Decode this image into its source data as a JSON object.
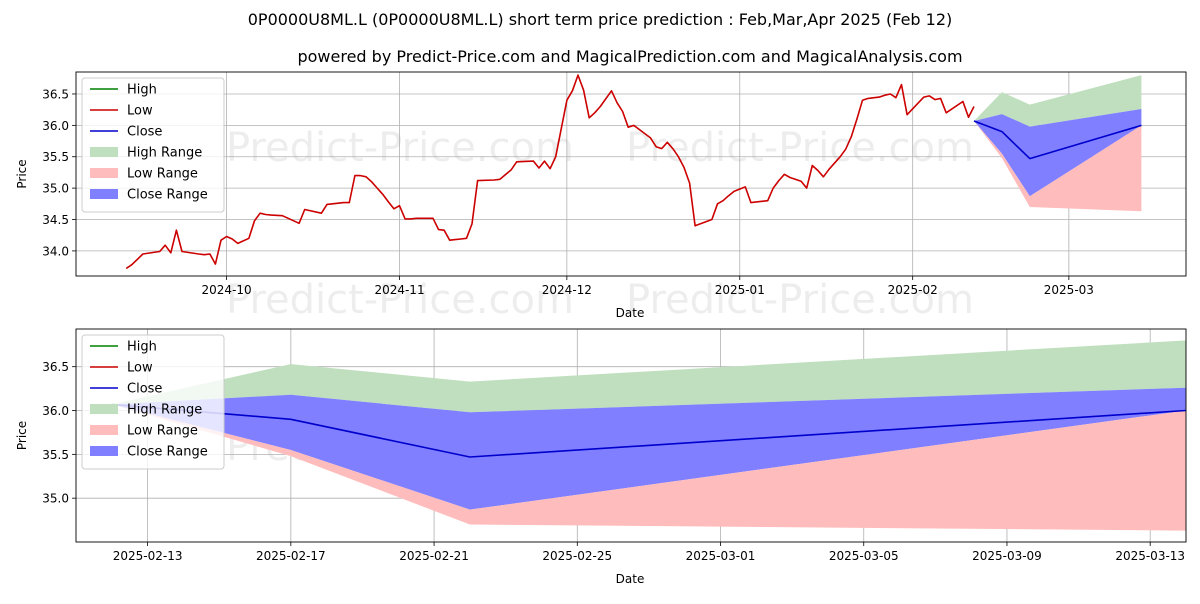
{
  "title": "0P0000U8ML.L (0P0000U8ML.L) short term price prediction : Feb,Mar,Apr 2025 (Feb 12)",
  "subtitle": "powered by Predict-Price.com and MagicalPrediction.com and MagicalAnalysis.com",
  "watermark": "Predict-Price.com",
  "colors": {
    "high": "#008000",
    "low": "#cc0000",
    "close": "#0000cc",
    "high_range": "#bfdfbf",
    "low_range": "#ffbcbc",
    "close_range": "#7f7fff"
  },
  "chart_data": [
    {
      "type": "line",
      "xlabel": "Date",
      "ylabel": "Price",
      "xlim": [
        "2024-09-04",
        "2025-03-22"
      ],
      "ylim": [
        33.6,
        36.85
      ],
      "x_ticks": [
        "2024-10-01",
        "2024-11-01",
        "2024-12-01",
        "2025-01-01",
        "2025-02-01",
        "2025-03-01"
      ],
      "x_tick_labels": [
        "2024-10",
        "2024-11",
        "2024-12",
        "2025-01",
        "2025-02",
        "2025-03"
      ],
      "y_ticks": [
        34.0,
        34.5,
        35.0,
        35.5,
        36.0,
        36.5
      ],
      "y_tick_labels": [
        "34.0",
        "34.5",
        "35.0",
        "35.5",
        "36.0",
        "36.5"
      ],
      "grid": true,
      "legend": {
        "position": "top-left",
        "items": [
          "High",
          "Low",
          "Close",
          "High Range",
          "Low Range",
          "Close Range"
        ]
      },
      "series": [
        {
          "name": "Low",
          "x": [
            "2024-09-13",
            "2024-09-14",
            "2024-09-16",
            "2024-09-19",
            "2024-09-20",
            "2024-09-21",
            "2024-09-22",
            "2024-09-23",
            "2024-09-26",
            "2024-09-27",
            "2024-09-28",
            "2024-09-29",
            "2024-09-30",
            "2024-10-01",
            "2024-10-02",
            "2024-10-03",
            "2024-10-05",
            "2024-10-06",
            "2024-10-07",
            "2024-10-08",
            "2024-10-09",
            "2024-10-11",
            "2024-10-14",
            "2024-10-15",
            "2024-10-18",
            "2024-10-19",
            "2024-10-20",
            "2024-10-21",
            "2024-10-22",
            "2024-10-23",
            "2024-10-24",
            "2024-10-25",
            "2024-10-26",
            "2024-10-27",
            "2024-10-28",
            "2024-10-29",
            "2024-10-30",
            "2024-10-31",
            "2024-11-01",
            "2024-11-02",
            "2024-11-03",
            "2024-11-04",
            "2024-11-05",
            "2024-11-07",
            "2024-11-08",
            "2024-11-09",
            "2024-11-10",
            "2024-11-11",
            "2024-11-12",
            "2024-11-13",
            "2024-11-14",
            "2024-11-15",
            "2024-11-18",
            "2024-11-19",
            "2024-11-21",
            "2024-11-22",
            "2024-11-25",
            "2024-11-26",
            "2024-11-27",
            "2024-11-28",
            "2024-11-29",
            "2024-12-01",
            "2024-12-02",
            "2024-12-03",
            "2024-12-04",
            "2024-12-05",
            "2024-12-06",
            "2024-12-07",
            "2024-12-09",
            "2024-12-10",
            "2024-12-11",
            "2024-12-12",
            "2024-12-13",
            "2024-12-16",
            "2024-12-17",
            "2024-12-18",
            "2024-12-19",
            "2024-12-20",
            "2024-12-21",
            "2024-12-22",
            "2024-12-23",
            "2024-12-24",
            "2024-12-27",
            "2024-12-28",
            "2024-12-29",
            "2024-12-30",
            "2024-12-31",
            "2025-01-02",
            "2025-01-03",
            "2025-01-06",
            "2025-01-07",
            "2025-01-08",
            "2025-01-09",
            "2025-01-10",
            "2025-01-12",
            "2025-01-13",
            "2025-01-14",
            "2025-01-15",
            "2025-01-16",
            "2025-01-17",
            "2025-01-19",
            "2025-01-20",
            "2025-01-21",
            "2025-01-22",
            "2025-01-23",
            "2025-01-24",
            "2025-01-26",
            "2025-01-27",
            "2025-01-28",
            "2025-01-29",
            "2025-01-30",
            "2025-01-31",
            "2025-02-03",
            "2025-02-04",
            "2025-02-05",
            "2025-02-06",
            "2025-02-07",
            "2025-02-10",
            "2025-02-11",
            "2025-02-12"
          ],
          "y": [
            33.72,
            33.78,
            33.95,
            33.99,
            34.09,
            33.97,
            34.33,
            33.99,
            33.95,
            33.94,
            33.95,
            33.79,
            34.17,
            34.23,
            34.19,
            34.12,
            34.2,
            34.48,
            34.6,
            34.58,
            34.57,
            34.56,
            34.44,
            34.66,
            34.6,
            34.74,
            34.75,
            34.76,
            34.77,
            34.77,
            35.2,
            35.2,
            35.18,
            35.1,
            35.0,
            34.9,
            34.78,
            34.67,
            34.72,
            34.51,
            34.51,
            34.52,
            34.52,
            34.52,
            34.34,
            34.33,
            34.17,
            34.18,
            34.19,
            34.2,
            34.43,
            35.12,
            35.13,
            35.14,
            35.29,
            35.42,
            35.43,
            35.32,
            35.43,
            35.31,
            35.5,
            36.4,
            36.55,
            36.8,
            36.56,
            36.12,
            36.2,
            36.3,
            36.55,
            36.36,
            36.22,
            35.97,
            36.0,
            35.8,
            35.66,
            35.63,
            35.73,
            35.63,
            35.5,
            35.33,
            35.08,
            34.4,
            34.5,
            34.75,
            34.8,
            34.88,
            34.95,
            35.02,
            34.77,
            34.8,
            35.0,
            35.12,
            35.22,
            35.17,
            35.11,
            35.0,
            35.36,
            35.28,
            35.18,
            35.3,
            35.5,
            35.62,
            35.82,
            36.1,
            36.4,
            36.43,
            36.45,
            36.48,
            36.5,
            36.44,
            36.65,
            36.17,
            36.45,
            36.47,
            36.41,
            36.43,
            36.2,
            36.38,
            36.13,
            36.3
          ]
        },
        {
          "name": "Close",
          "x": [
            "2025-02-12",
            "2025-02-17",
            "2025-02-22",
            "2025-03-14"
          ],
          "y": [
            36.07,
            35.9,
            35.47,
            36.0
          ]
        },
        {
          "name": "High Range",
          "x": [
            "2025-02-12",
            "2025-02-17",
            "2025-02-22",
            "2025-03-14"
          ],
          "upper": [
            36.07,
            36.53,
            36.33,
            36.8
          ],
          "lower": [
            36.07,
            36.18,
            35.98,
            36.26
          ]
        },
        {
          "name": "Close Range",
          "x": [
            "2025-02-12",
            "2025-02-17",
            "2025-02-22",
            "2025-03-14"
          ],
          "upper": [
            36.07,
            36.18,
            35.98,
            36.26
          ],
          "lower": [
            36.07,
            35.55,
            34.87,
            36.0
          ]
        },
        {
          "name": "Low Range",
          "x": [
            "2025-02-12",
            "2025-02-17",
            "2025-02-22",
            "2025-03-14"
          ],
          "upper": [
            36.07,
            35.55,
            34.87,
            36.0
          ],
          "lower": [
            36.07,
            35.48,
            34.7,
            34.63
          ]
        }
      ]
    },
    {
      "type": "line",
      "xlabel": "Date",
      "ylabel": "Price",
      "xlim": [
        "2025-02-11",
        "2025-03-14"
      ],
      "ylim": [
        34.5,
        36.93
      ],
      "x_ticks": [
        "2025-02-13",
        "2025-02-17",
        "2025-02-21",
        "2025-02-25",
        "2025-03-01",
        "2025-03-05",
        "2025-03-09",
        "2025-03-13"
      ],
      "x_tick_labels": [
        "2025-02-13",
        "2025-02-17",
        "2025-02-21",
        "2025-02-25",
        "2025-03-01",
        "2025-03-05",
        "2025-03-09",
        "2025-03-13"
      ],
      "y_ticks": [
        35.0,
        35.5,
        36.0,
        36.5
      ],
      "y_tick_labels": [
        "35.0",
        "35.5",
        "36.0",
        "36.5"
      ],
      "grid": true,
      "legend": {
        "position": "top-left",
        "items": [
          "High",
          "Low",
          "Close",
          "High Range",
          "Low Range",
          "Close Range"
        ]
      },
      "series": [
        {
          "name": "Close",
          "x": [
            "2025-02-12",
            "2025-02-17",
            "2025-02-22",
            "2025-03-14"
          ],
          "y": [
            36.07,
            35.9,
            35.47,
            36.0
          ]
        },
        {
          "name": "High Range",
          "x": [
            "2025-02-12",
            "2025-02-17",
            "2025-02-22",
            "2025-03-14"
          ],
          "upper": [
            36.07,
            36.53,
            36.33,
            36.8
          ],
          "lower": [
            36.07,
            36.18,
            35.98,
            36.26
          ]
        },
        {
          "name": "Close Range",
          "x": [
            "2025-02-12",
            "2025-02-17",
            "2025-02-22",
            "2025-03-14"
          ],
          "upper": [
            36.07,
            36.18,
            35.98,
            36.26
          ],
          "lower": [
            36.07,
            35.55,
            34.87,
            36.0
          ]
        },
        {
          "name": "Low Range",
          "x": [
            "2025-02-12",
            "2025-02-17",
            "2025-02-22",
            "2025-03-14"
          ],
          "upper": [
            36.07,
            35.55,
            34.87,
            36.0
          ],
          "lower": [
            36.07,
            35.48,
            34.7,
            34.63
          ]
        }
      ]
    }
  ]
}
